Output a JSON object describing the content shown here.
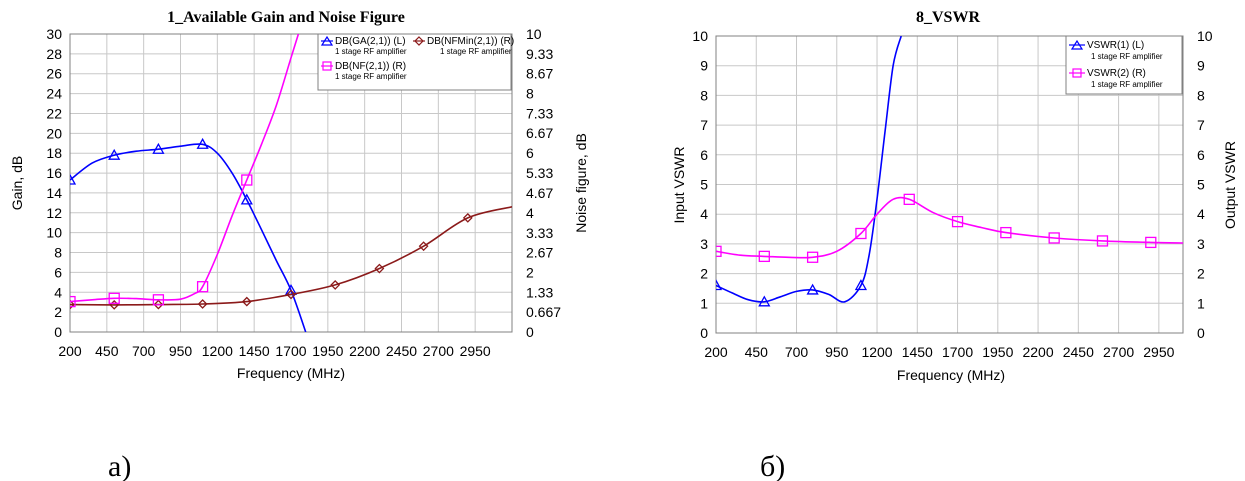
{
  "chart_data": [
    {
      "id": "a",
      "type": "line",
      "title": "1_Available Gain and Noise Figure",
      "xlabel": "Frequency (MHz)",
      "ylabel": "Gain, dB",
      "ylabel_right": "Noise figure, dB",
      "xlim": [
        200,
        3200
      ],
      "ylim": [
        0,
        30
      ],
      "ylim_right": [
        0,
        10
      ],
      "x_ticks": [
        "200",
        "450",
        "700",
        "950",
        "1200",
        "1450",
        "1700",
        "1950",
        "2200",
        "2450",
        "2700",
        "2950"
      ],
      "y_ticks": [
        "0",
        "2",
        "4",
        "6",
        "8",
        "10",
        "12",
        "14",
        "16",
        "18",
        "20",
        "22",
        "24",
        "26",
        "28",
        "30"
      ],
      "y_right_ticks": [
        "0",
        "0.667",
        "1.33",
        "2",
        "2.67",
        "3.33",
        "4",
        "4.67",
        "5.33",
        "6",
        "6.67",
        "7.33",
        "8",
        "8.67",
        "9.33",
        "10"
      ],
      "grid": true,
      "legend_position": "top-right",
      "series": [
        {
          "name": "DB(GA(2,1)) (L)",
          "sub": "1 stage RF amplifier",
          "axis": "left",
          "color": "#0000ff",
          "marker": "triangle",
          "x": [
            200,
            350,
            500,
            650,
            800,
            950,
            1100,
            1200,
            1300,
            1400,
            1500,
            1600,
            1700,
            1800
          ],
          "y": [
            15.3,
            17.0,
            17.8,
            18.2,
            18.4,
            18.7,
            18.9,
            18.0,
            16.0,
            13.3,
            10.3,
            7.2,
            4.2,
            0
          ],
          "markers_x": [
            200,
            500,
            800,
            1100,
            1400,
            1700
          ],
          "markers_y": [
            15.3,
            17.8,
            18.4,
            18.9,
            13.3,
            4.2
          ]
        },
        {
          "name": "DB(NFMin(2,1)) (R)",
          "sub": "1 stage RF amplifier",
          "axis": "right",
          "color": "#8b1a1a",
          "marker": "diamond",
          "x": [
            200,
            500,
            800,
            1100,
            1400,
            1700,
            2000,
            2300,
            2600,
            2900,
            3200
          ],
          "y": [
            0.92,
            0.91,
            0.92,
            0.94,
            1.02,
            1.26,
            1.58,
            2.13,
            2.88,
            3.83,
            4.2
          ],
          "markers_x": [
            200,
            500,
            800,
            1100,
            1400,
            1700,
            2000,
            2300,
            2600,
            2900
          ],
          "markers_y": [
            0.92,
            0.91,
            0.92,
            0.94,
            1.02,
            1.26,
            1.58,
            2.13,
            2.88,
            3.83
          ]
        },
        {
          "name": "DB(NF(2,1)) (R)",
          "sub": "1 stage RF amplifier",
          "axis": "right",
          "color": "#ff00ff",
          "marker": "square",
          "x": [
            200,
            350,
            500,
            650,
            800,
            950,
            1050,
            1100,
            1200,
            1300,
            1400,
            1500,
            1600,
            1700,
            1750
          ],
          "y": [
            1.02,
            1.08,
            1.13,
            1.12,
            1.08,
            1.1,
            1.3,
            1.52,
            2.6,
            3.9,
            5.1,
            6.3,
            7.6,
            9.2,
            10.0
          ],
          "markers_x": [
            200,
            500,
            800,
            1100,
            1400
          ],
          "markers_y": [
            1.02,
            1.13,
            1.08,
            1.52,
            5.1
          ]
        }
      ]
    },
    {
      "id": "b",
      "type": "line",
      "title": "8_VSWR",
      "xlabel": "Frequency (MHz)",
      "ylabel": "Input VSWR",
      "ylabel_right": "Output VSWR",
      "xlim": [
        200,
        3100
      ],
      "ylim": [
        0,
        10
      ],
      "ylim_right": [
        0,
        10
      ],
      "x_ticks": [
        "200",
        "450",
        "700",
        "950",
        "1200",
        "1450",
        "1700",
        "1950",
        "2200",
        "2450",
        "2700",
        "2950"
      ],
      "y_ticks": [
        "0",
        "1",
        "2",
        "3",
        "4",
        "5",
        "6",
        "7",
        "8",
        "9",
        "10"
      ],
      "y_right_ticks": [
        "0",
        "1",
        "2",
        "3",
        "4",
        "5",
        "6",
        "7",
        "8",
        "9",
        "10"
      ],
      "grid": true,
      "legend_position": "top-right",
      "series": [
        {
          "name": "VSWR(1) (L)",
          "sub": "1 stage RF amplifier",
          "axis": "left",
          "color": "#0000ff",
          "marker": "triangle",
          "x": [
            200,
            300,
            400,
            500,
            600,
            700,
            800,
            900,
            1000,
            1100,
            1150,
            1200,
            1250,
            1300,
            1350
          ],
          "y": [
            1.6,
            1.35,
            1.12,
            1.05,
            1.22,
            1.4,
            1.45,
            1.3,
            1.05,
            1.6,
            2.6,
            4.5,
            6.8,
            9.0,
            10.0
          ],
          "markers_x": [
            200,
            500,
            800,
            1100
          ],
          "markers_y": [
            1.6,
            1.05,
            1.45,
            1.6
          ]
        },
        {
          "name": "VSWR(2) (R)",
          "sub": "1 stage RF amplifier",
          "axis": "right",
          "color": "#ff00ff",
          "marker": "square",
          "x": [
            200,
            350,
            500,
            650,
            800,
            950,
            1100,
            1200,
            1300,
            1400,
            1550,
            1700,
            1850,
            2000,
            2300,
            2600,
            2900,
            3100
          ],
          "y": [
            2.75,
            2.62,
            2.58,
            2.55,
            2.55,
            2.75,
            3.35,
            4.0,
            4.5,
            4.5,
            4.05,
            3.75,
            3.55,
            3.38,
            3.2,
            3.1,
            3.05,
            3.03
          ],
          "markers_x": [
            200,
            500,
            800,
            1100,
            1400,
            1700,
            2000,
            2300,
            2600,
            2900
          ],
          "markers_y": [
            2.75,
            2.58,
            2.55,
            3.35,
            4.5,
            3.75,
            3.38,
            3.2,
            3.1,
            3.05
          ]
        }
      ]
    }
  ],
  "captions": [
    "а)",
    "б)"
  ]
}
